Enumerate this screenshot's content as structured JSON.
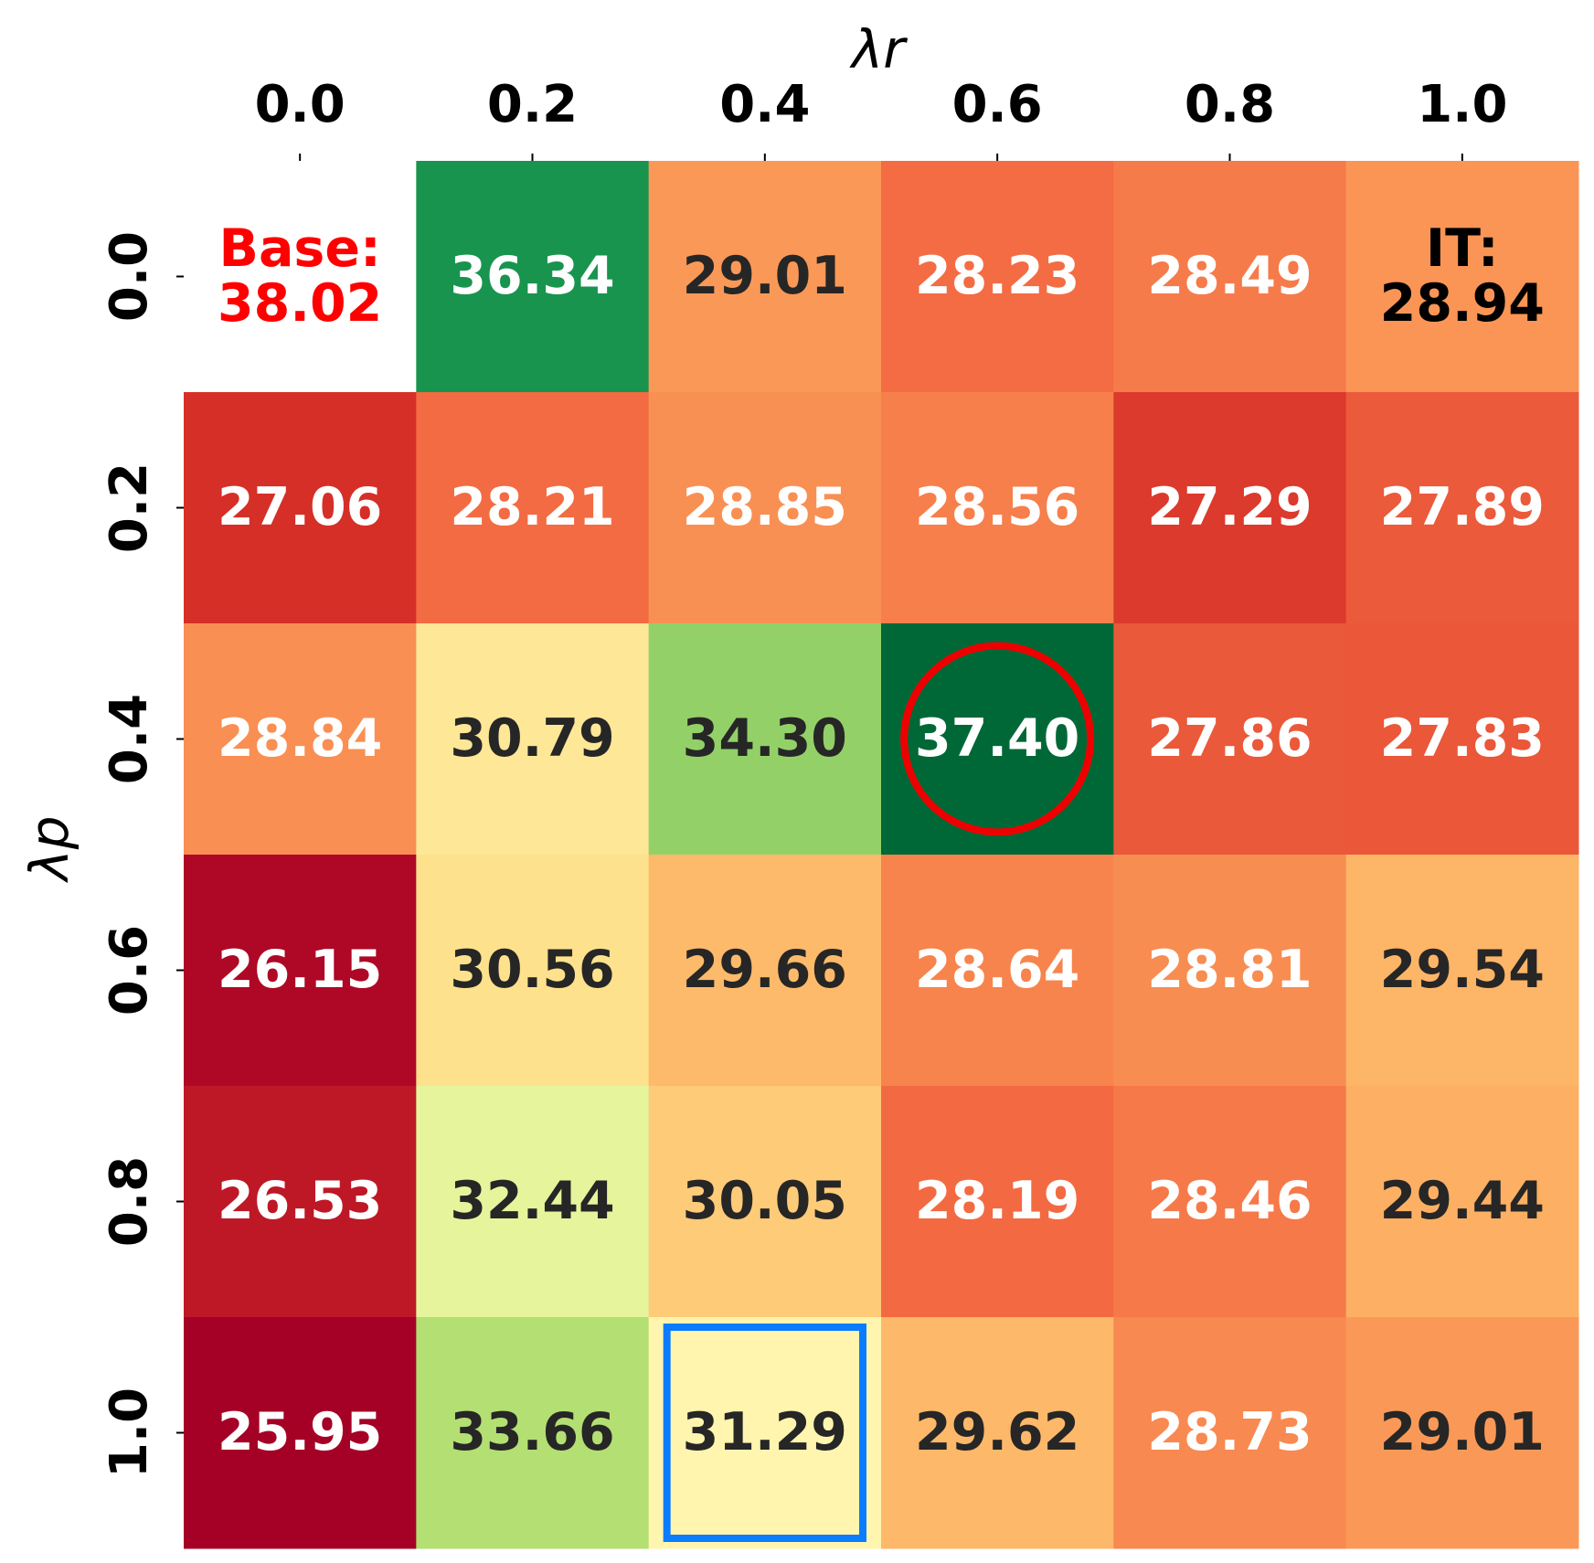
{
  "chart_data": {
    "type": "heatmap",
    "colormap": "RdYlGn",
    "xlabel": "λr",
    "ylabel": "λp",
    "x_categories": [
      "0.0",
      "0.2",
      "0.4",
      "0.6",
      "0.8",
      "1.0"
    ],
    "y_categories": [
      "0.0",
      "0.2",
      "0.4",
      "0.6",
      "0.8",
      "1.0"
    ],
    "values": [
      [
        null,
        36.34,
        29.01,
        28.23,
        28.49,
        28.94
      ],
      [
        27.06,
        28.21,
        28.85,
        28.56,
        27.29,
        27.89
      ],
      [
        28.84,
        30.79,
        34.3,
        37.4,
        27.86,
        27.83
      ],
      [
        26.15,
        30.56,
        29.66,
        28.64,
        28.81,
        29.54
      ],
      [
        26.53,
        32.44,
        30.05,
        28.19,
        28.46,
        29.44
      ],
      [
        25.95,
        33.66,
        31.29,
        29.62,
        28.73,
        29.01
      ]
    ],
    "value_labels": [
      [
        null,
        "36.34",
        "29.01",
        "28.23",
        "28.49",
        "IT:\n28.94"
      ],
      [
        "27.06",
        "28.21",
        "28.85",
        "28.56",
        "27.29",
        "27.89"
      ],
      [
        "28.84",
        "30.79",
        "34.30",
        "37.40",
        "27.86",
        "27.83"
      ],
      [
        "26.15",
        "30.56",
        "29.66",
        "28.64",
        "28.81",
        "29.54"
      ],
      [
        "26.53",
        "32.44",
        "30.05",
        "28.19",
        "28.46",
        "29.44"
      ],
      [
        "25.95",
        "33.66",
        "31.29",
        "29.62",
        "28.73",
        "29.01"
      ]
    ],
    "annotations": [
      {
        "text": "Base:\n38.02",
        "value": 38.02,
        "color": "#ff0000"
      }
    ]
  }
}
